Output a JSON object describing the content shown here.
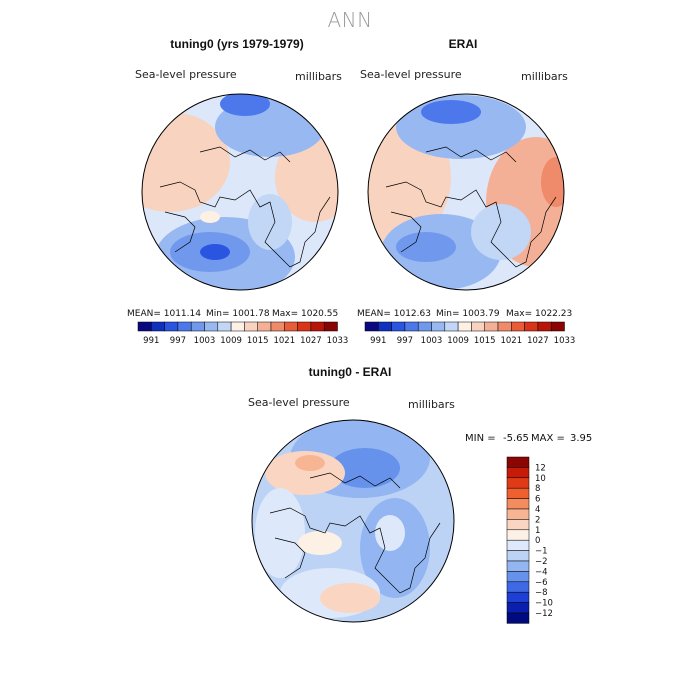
{
  "figure": {
    "title": "ANN"
  },
  "panels": [
    {
      "title": "tuning0 (yrs 1979-1979)",
      "variable": "Sea-level pressure",
      "units": "millibars",
      "stats": {
        "mean": "MEAN= 1011.14",
        "min": "Min= 1001.78",
        "max": "Max= 1020.55"
      }
    },
    {
      "title": "ERAI",
      "variable": "Sea-level pressure",
      "units": "millibars",
      "stats": {
        "mean": "MEAN= 1012.63",
        "min": "Min= 1003.79",
        "max": "Max= 1022.23"
      }
    },
    {
      "title": "tuning0 - ERAI",
      "variable": "Sea-level pressure",
      "units": "millibars",
      "stats": {
        "min_label": "MIN =",
        "min": "-5.65",
        "max_label": "MAX =",
        "max": "3.95"
      }
    }
  ],
  "field_colorbar": {
    "labels": [
      "991",
      "997",
      "1003",
      "1009",
      "1015",
      "1021",
      "1027",
      "1033"
    ],
    "colors": [
      "#0a0a80",
      "#1030c0",
      "#2a55e0",
      "#4c78ec",
      "#7099ee",
      "#98b8f2",
      "#c2d6f6",
      "#fdf0e4",
      "#f8d3bf",
      "#f4b097",
      "#ef8a6a",
      "#e85c38",
      "#d93418",
      "#b81508",
      "#8a0404"
    ]
  },
  "diff_colorbar": {
    "labels": [
      "12",
      "10",
      "8",
      "6",
      "4",
      "2",
      "1",
      "0",
      "−1",
      "−2",
      "−4",
      "−6",
      "−8",
      "−10",
      "−12"
    ],
    "colors": [
      "#8c0505",
      "#c81a08",
      "#e03a16",
      "#f0602e",
      "#f38c5f",
      "#f7b594",
      "#fad6c2",
      "#fdf1e6",
      "#dde9fa",
      "#bcd3f6",
      "#93b6f2",
      "#6692ec",
      "#3e68e4",
      "#1d3fd6",
      "#0a1fb0",
      "#000a80"
    ]
  },
  "chart_data": {
    "type": "heatmap",
    "projection": "north polar stereographic",
    "note": "filled contour maps of annual-mean sea-level pressure"
  }
}
